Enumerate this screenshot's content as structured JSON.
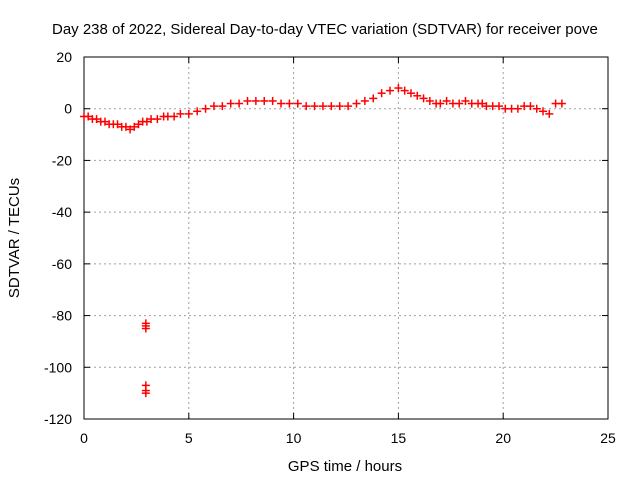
{
  "chart_data": {
    "type": "scatter",
    "title": "Day 238 of 2022, Sidereal Day-to-day VTEC variation (SDTVAR) for receiver pove",
    "xlabel": "GPS time / hours",
    "ylabel": "SDTVAR / TECUs",
    "xlim": [
      0,
      25
    ],
    "ylim": [
      -120,
      20
    ],
    "xticks": [
      0,
      5,
      10,
      15,
      20,
      25
    ],
    "yticks": [
      -120,
      -100,
      -80,
      -60,
      -40,
      -20,
      0,
      20
    ],
    "grid": true,
    "marker": "+",
    "color": "#ff0000",
    "series": [
      {
        "name": "SDTVAR",
        "x": [
          0.0,
          0.2,
          0.4,
          0.6,
          0.8,
          1.0,
          1.2,
          1.4,
          1.6,
          1.8,
          2.0,
          2.2,
          2.4,
          2.6,
          2.8,
          3.0,
          3.2,
          3.5,
          3.8,
          4.0,
          4.3,
          4.6,
          5.0,
          5.4,
          5.8,
          6.2,
          6.6,
          7.0,
          7.4,
          7.8,
          8.2,
          8.6,
          9.0,
          9.4,
          9.8,
          10.2,
          10.6,
          11.0,
          11.4,
          11.8,
          12.2,
          12.6,
          13.0,
          13.4,
          13.8,
          14.2,
          14.6,
          15.0,
          15.3,
          15.6,
          15.9,
          16.2,
          16.5,
          16.8,
          17.0,
          17.3,
          17.6,
          17.9,
          18.2,
          18.5,
          18.8,
          19.0,
          19.2,
          19.5,
          19.8,
          20.1,
          20.4,
          20.7,
          21.0,
          21.3,
          21.6,
          21.9,
          22.2,
          22.5,
          22.8,
          2.95,
          2.95,
          2.95,
          2.95,
          2.95,
          2.95
        ],
        "y": [
          -3,
          -3,
          -4,
          -4,
          -5,
          -5,
          -6,
          -6,
          -6,
          -7,
          -7,
          -8,
          -7,
          -6,
          -5,
          -5,
          -4,
          -4,
          -3,
          -3,
          -3,
          -2,
          -2,
          -1,
          0,
          1,
          1,
          2,
          2,
          3,
          3,
          3,
          3,
          2,
          2,
          2,
          1,
          1,
          1,
          1,
          1,
          1,
          2,
          3,
          4,
          6,
          7,
          8,
          7,
          6,
          5,
          4,
          3,
          2,
          2,
          3,
          2,
          2,
          3,
          2,
          2,
          2,
          1,
          1,
          1,
          0,
          0,
          0,
          1,
          1,
          0,
          -1,
          -2,
          2,
          2,
          -83,
          -85,
          -84,
          -107,
          -109,
          -110
        ]
      }
    ]
  }
}
